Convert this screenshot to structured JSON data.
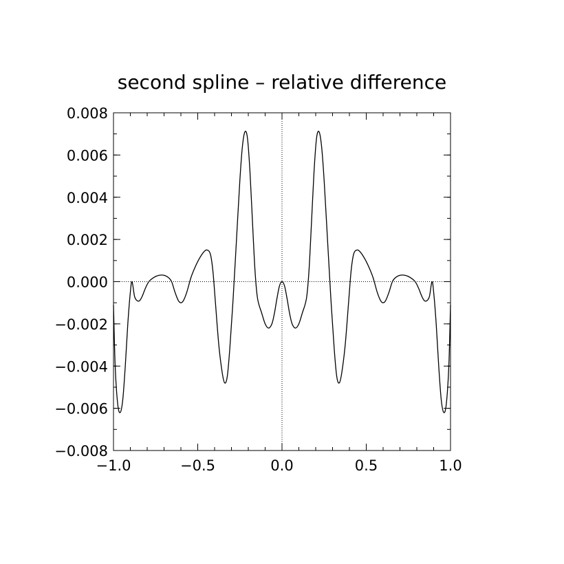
{
  "chart_data": {
    "type": "line",
    "title": "second spline – relative difference",
    "xlabel": "",
    "ylabel": "",
    "xlim": [
      -1.0,
      1.0
    ],
    "ylim": [
      -0.008,
      0.008
    ],
    "grid": false,
    "legend": "none",
    "zero_lines": true,
    "x_ticks": [
      -1.0,
      -0.5,
      0.0,
      0.5,
      1.0
    ],
    "x_tick_labels": [
      "−1.0",
      "−0.5",
      "0.0",
      "0.5",
      "1.0"
    ],
    "y_ticks": [
      -0.008,
      -0.006,
      -0.004,
      -0.002,
      0.0,
      0.002,
      0.004,
      0.006,
      0.008
    ],
    "y_tick_labels": [
      "−0.008",
      "−0.006",
      "−0.004",
      "−0.002",
      "0.000",
      "0.002",
      "0.004",
      "0.006",
      "0.008"
    ],
    "series": [
      {
        "color": "#000000",
        "points": [
          [
            -1.0,
            -0.0011
          ],
          [
            -0.99,
            -0.004
          ],
          [
            -0.975,
            -0.0058
          ],
          [
            -0.96,
            -0.0062
          ],
          [
            -0.945,
            -0.0056
          ],
          [
            -0.93,
            -0.004
          ],
          [
            -0.915,
            -0.002
          ],
          [
            -0.9,
            -0.0005
          ],
          [
            -0.89,
            0.0
          ],
          [
            -0.875,
            -0.0007
          ],
          [
            -0.86,
            -0.0009
          ],
          [
            -0.845,
            -0.0009
          ],
          [
            -0.83,
            -0.0007
          ],
          [
            -0.81,
            -0.0003
          ],
          [
            -0.79,
            0.0
          ],
          [
            -0.76,
            0.0002
          ],
          [
            -0.73,
            0.0003
          ],
          [
            -0.7,
            0.0003
          ],
          [
            -0.675,
            0.0002
          ],
          [
            -0.655,
            0.0
          ],
          [
            -0.635,
            -0.0005
          ],
          [
            -0.615,
            -0.0009
          ],
          [
            -0.6,
            -0.001
          ],
          [
            -0.585,
            -0.0009
          ],
          [
            -0.565,
            -0.0005
          ],
          [
            -0.54,
            0.0002
          ],
          [
            -0.515,
            0.0007
          ],
          [
            -0.49,
            0.0011
          ],
          [
            -0.465,
            0.0014
          ],
          [
            -0.445,
            0.0015
          ],
          [
            -0.425,
            0.0013
          ],
          [
            -0.41,
            0.0005
          ],
          [
            -0.395,
            -0.001
          ],
          [
            -0.375,
            -0.003
          ],
          [
            -0.355,
            -0.0043
          ],
          [
            -0.34,
            -0.0048
          ],
          [
            -0.325,
            -0.0045
          ],
          [
            -0.31,
            -0.0032
          ],
          [
            -0.29,
            -0.0008
          ],
          [
            -0.27,
            0.002
          ],
          [
            -0.25,
            0.0048
          ],
          [
            -0.235,
            0.0064
          ],
          [
            -0.22,
            0.0071
          ],
          [
            -0.205,
            0.0068
          ],
          [
            -0.19,
            0.0052
          ],
          [
            -0.175,
            0.0028
          ],
          [
            -0.16,
            0.0005
          ],
          [
            -0.145,
            -0.0008
          ],
          [
            -0.12,
            -0.0015
          ],
          [
            -0.1,
            -0.002
          ],
          [
            -0.08,
            -0.0022
          ],
          [
            -0.06,
            -0.002
          ],
          [
            -0.045,
            -0.0015
          ],
          [
            -0.03,
            -0.0008
          ],
          [
            -0.015,
            -0.0002
          ],
          [
            0.0,
            0.0
          ],
          [
            0.015,
            -0.0002
          ],
          [
            0.03,
            -0.0008
          ],
          [
            0.045,
            -0.0015
          ],
          [
            0.06,
            -0.002
          ],
          [
            0.08,
            -0.0022
          ],
          [
            0.1,
            -0.002
          ],
          [
            0.12,
            -0.0015
          ],
          [
            0.145,
            -0.0008
          ],
          [
            0.16,
            0.0005
          ],
          [
            0.175,
            0.0028
          ],
          [
            0.19,
            0.0052
          ],
          [
            0.205,
            0.0068
          ],
          [
            0.22,
            0.0071
          ],
          [
            0.235,
            0.0064
          ],
          [
            0.25,
            0.0048
          ],
          [
            0.27,
            0.002
          ],
          [
            0.29,
            -0.0008
          ],
          [
            0.31,
            -0.0032
          ],
          [
            0.325,
            -0.0045
          ],
          [
            0.34,
            -0.0048
          ],
          [
            0.355,
            -0.0043
          ],
          [
            0.375,
            -0.003
          ],
          [
            0.395,
            -0.001
          ],
          [
            0.41,
            0.0005
          ],
          [
            0.425,
            0.0013
          ],
          [
            0.445,
            0.0015
          ],
          [
            0.465,
            0.0014
          ],
          [
            0.49,
            0.0011
          ],
          [
            0.515,
            0.0007
          ],
          [
            0.54,
            0.0002
          ],
          [
            0.565,
            -0.0005
          ],
          [
            0.585,
            -0.0009
          ],
          [
            0.6,
            -0.001
          ],
          [
            0.615,
            -0.0009
          ],
          [
            0.635,
            -0.0005
          ],
          [
            0.655,
            0.0
          ],
          [
            0.675,
            0.0002
          ],
          [
            0.7,
            0.0003
          ],
          [
            0.73,
            0.0003
          ],
          [
            0.76,
            0.0002
          ],
          [
            0.79,
            0.0
          ],
          [
            0.81,
            -0.0003
          ],
          [
            0.83,
            -0.0007
          ],
          [
            0.845,
            -0.0009
          ],
          [
            0.86,
            -0.0009
          ],
          [
            0.875,
            -0.0007
          ],
          [
            0.89,
            0.0
          ],
          [
            0.9,
            -0.0005
          ],
          [
            0.915,
            -0.002
          ],
          [
            0.93,
            -0.004
          ],
          [
            0.945,
            -0.0056
          ],
          [
            0.96,
            -0.0062
          ],
          [
            0.975,
            -0.0058
          ],
          [
            0.99,
            -0.004
          ],
          [
            1.0,
            -0.0011
          ]
        ]
      }
    ]
  }
}
